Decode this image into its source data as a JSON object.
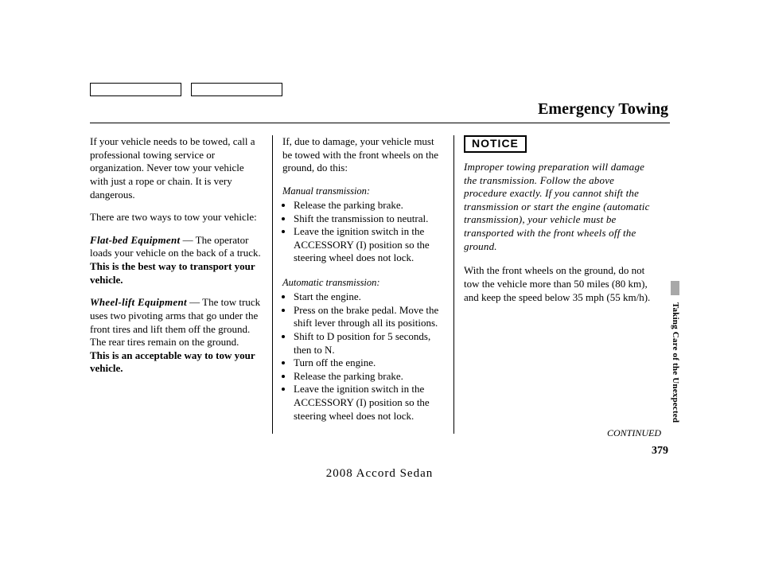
{
  "title": "Emergency Towing",
  "col1": {
    "p1": "If your vehicle needs to be towed, call a professional towing service or organization. Never tow your vehicle with just a rope or chain. It is very dangerous.",
    "p2": "There are two ways to tow your vehicle:",
    "flatbed_label": "Flat-bed Equipment",
    "flatbed_text_a": " — The operator loads your vehicle on the back of a truck. ",
    "flatbed_text_b": "This is the best way to transport your vehicle.",
    "wheel_label": "Wheel-lift Equipment",
    "wheel_text_a": " — The tow truck uses two pivoting arms that go under the front tires and lift them off the ground. The rear tires remain on the ground. ",
    "wheel_text_b": "This is an acceptable way to tow your vehicle."
  },
  "col2": {
    "intro": "If, due to damage, your vehicle must be towed with the front wheels on the ground, do this:",
    "manual_head": "Manual transmission:",
    "manual_items": [
      "Release the parking brake.",
      "Shift the transmission to neutral.",
      "Leave the ignition switch in the ACCESSORY (I) position so the steering wheel does not lock."
    ],
    "auto_head": "Automatic transmission:",
    "auto_items": [
      "Start the engine.",
      "Press on the brake pedal. Move the shift lever through all its positions.",
      "Shift to D position for 5 seconds, then to N.",
      "Turn off the engine.",
      "Release the parking brake.",
      "Leave the ignition switch in the ACCESSORY (I) position so the steering wheel does not lock."
    ]
  },
  "col3": {
    "notice_label": "NOTICE",
    "notice_text": "Improper towing preparation will damage the transmission. Follow the above procedure exactly. If you cannot shift the transmission or start the engine (automatic transmission), your vehicle must be transported with the front wheels off the ground.",
    "p1": "With the front wheels on the ground, do not tow the vehicle more than 50 miles (80 km), and keep the speed below 35 mph (55 km/h)."
  },
  "side_tab": "Taking Care of the Unexpected",
  "continued": "CONTINUED",
  "page_num": "379",
  "footer": "2008  Accord  Sedan"
}
